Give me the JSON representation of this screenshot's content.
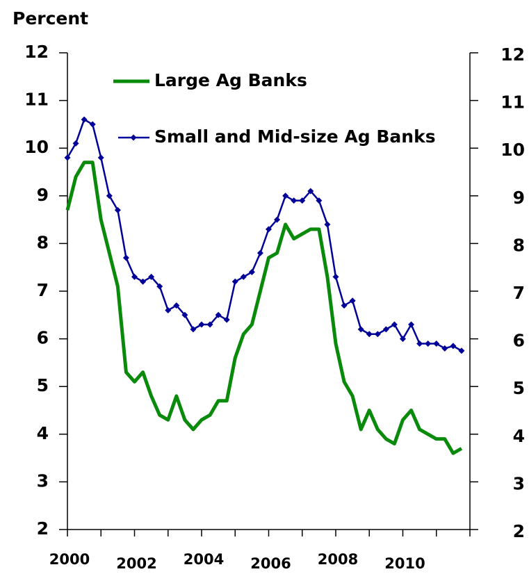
{
  "chart_data": {
    "type": "line",
    "ylabel": "Percent",
    "x": [
      2000,
      2000.25,
      2000.5,
      2000.75,
      2001,
      2001.25,
      2001.5,
      2001.75,
      2002,
      2002.25,
      2002.5,
      2002.75,
      2003,
      2003.25,
      2003.5,
      2003.75,
      2004,
      2004.25,
      2004.5,
      2004.75,
      2005,
      2005.25,
      2005.5,
      2005.75,
      2006,
      2006.25,
      2006.5,
      2006.75,
      2007,
      2007.25,
      2007.5,
      2007.75,
      2008,
      2008.25,
      2008.5,
      2008.75,
      2009,
      2009.25,
      2009.5,
      2009.75,
      2010,
      2010.25,
      2010.5,
      2010.75,
      2011,
      2011.25,
      2011.5,
      2011.75
    ],
    "series": [
      {
        "name": "Large Ag Banks",
        "color": "#0a8a0a",
        "marker": false,
        "values": [
          8.7,
          9.4,
          9.7,
          9.7,
          8.5,
          7.8,
          7.1,
          5.3,
          5.1,
          5.3,
          4.8,
          4.4,
          4.3,
          4.8,
          4.3,
          4.1,
          4.3,
          4.4,
          4.7,
          4.7,
          5.6,
          6.1,
          6.3,
          7.0,
          7.7,
          7.8,
          8.4,
          8.1,
          8.2,
          8.3,
          8.3,
          7.3,
          5.9,
          5.1,
          4.8,
          4.1,
          4.5,
          4.1,
          3.9,
          3.8,
          4.3,
          4.5,
          4.1,
          4.0,
          3.9,
          3.9,
          3.6,
          3.7
        ]
      },
      {
        "name": "Small and Mid-size Ag Banks",
        "color": "#000099",
        "marker": true,
        "values": [
          9.8,
          10.1,
          10.6,
          10.5,
          9.8,
          9.0,
          8.7,
          7.7,
          7.3,
          7.2,
          7.3,
          7.1,
          6.6,
          6.7,
          6.5,
          6.2,
          6.3,
          6.3,
          6.5,
          6.4,
          7.2,
          7.3,
          7.4,
          7.8,
          8.3,
          8.5,
          9.0,
          8.9,
          8.9,
          9.1,
          8.9,
          8.4,
          7.3,
          6.7,
          6.8,
          6.2,
          6.1,
          6.1,
          6.2,
          6.3,
          6.0,
          6.3,
          5.9,
          5.9,
          5.9,
          5.8,
          5.85,
          5.75
        ]
      }
    ],
    "xlim": [
      2000,
      2012
    ],
    "xticks": [
      2000,
      2002,
      2004,
      2006,
      2008,
      2010
    ],
    "x_minor_ticks": [
      2001,
      2003,
      2005,
      2007,
      2009,
      2011,
      2012
    ],
    "ylim": [
      2,
      12
    ],
    "yticks": [
      2,
      3,
      4,
      5,
      6,
      7,
      8,
      9,
      10,
      11,
      12
    ],
    "y2lim": [
      2,
      12
    ],
    "y2ticks": [
      2,
      3,
      4,
      5,
      6,
      7,
      8,
      9,
      10,
      11,
      12
    ],
    "legend": "upper left"
  }
}
